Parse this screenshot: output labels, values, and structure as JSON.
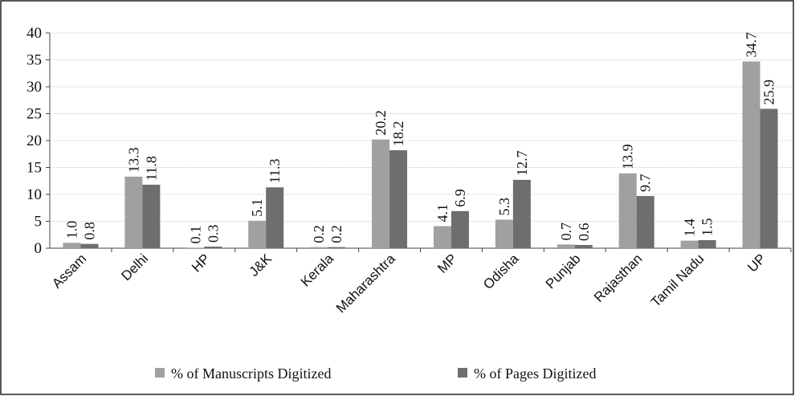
{
  "chart_data": {
    "type": "bar",
    "categories": [
      "Assam",
      "Delhi",
      "HP",
      "J&K",
      "Kerala",
      "Maharashtra",
      "MP",
      "Odisha",
      "Punjab",
      "Rajasthan",
      "Tamil Nadu",
      "UP"
    ],
    "series": [
      {
        "name": "% of Manuscripts Digitized",
        "color": "#a0a0a0",
        "values": [
          1.0,
          13.3,
          0.1,
          5.1,
          0.2,
          20.2,
          4.1,
          5.3,
          0.7,
          13.9,
          1.4,
          34.7
        ],
        "value_labels": [
          "1.0",
          "13.3",
          "0.1",
          "5.1",
          "0.2",
          "20.2",
          "4.1",
          "5.3",
          "0.7",
          "13.9",
          "1.4",
          "34.7"
        ]
      },
      {
        "name": "% of Pages Digitized",
        "color": "#6e6e6e",
        "values": [
          0.8,
          11.8,
          0.3,
          11.3,
          0.2,
          18.2,
          6.9,
          12.7,
          0.6,
          9.7,
          1.5,
          25.9
        ],
        "value_labels": [
          "0.8",
          "11.8",
          "0.3",
          "11.3",
          "0.2",
          "18.2",
          "6.9",
          "12.7",
          "0.6",
          "9.7",
          "1.5",
          "25.9"
        ]
      }
    ],
    "ylim": [
      0,
      40
    ],
    "yticks": [
      0,
      5,
      10,
      15,
      20,
      25,
      30,
      35,
      40
    ],
    "grid": true,
    "legend": "bottom"
  }
}
